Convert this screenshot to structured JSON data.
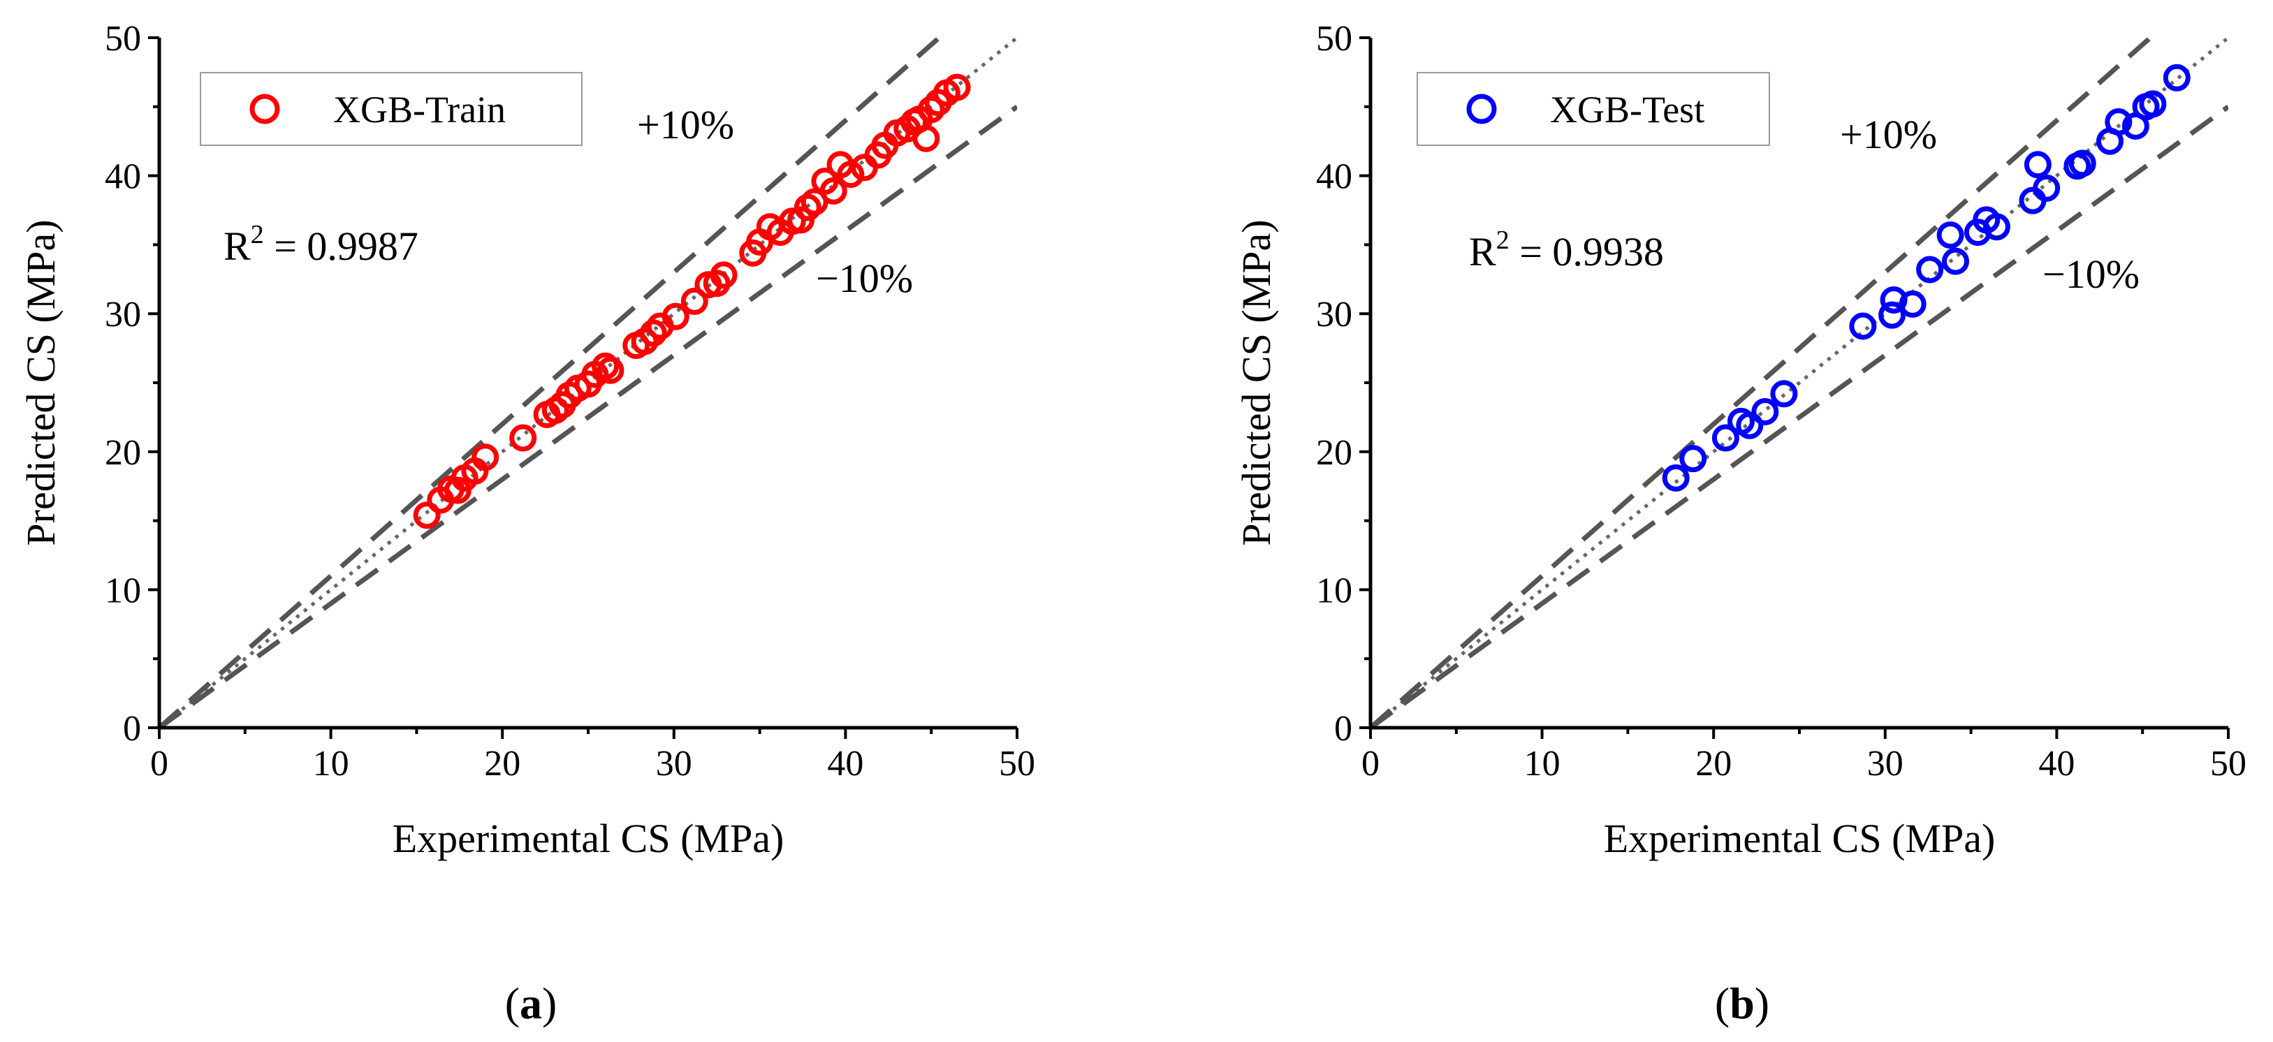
{
  "chart_data": [
    {
      "type": "scatter",
      "panel_label": "a",
      "title": "",
      "xlabel": "Experimental CS (MPa)",
      "ylabel": "Predicted CS (MPa)",
      "xlim": [
        0,
        50
      ],
      "ylim": [
        0,
        50
      ],
      "xticks": [
        0,
        10,
        20,
        30,
        40,
        50
      ],
      "yticks": [
        0,
        10,
        20,
        30,
        40,
        50
      ],
      "grid": false,
      "legend_position": "top-left",
      "series": [
        {
          "name": "XGB-Train",
          "color": "#ff0000",
          "marker": "open-circle",
          "x": [
            15.6,
            16.4,
            17.0,
            17.4,
            17.8,
            18.4,
            19.0,
            21.2,
            22.6,
            23.1,
            23.5,
            23.9,
            24.4,
            25.0,
            25.4,
            26.0,
            26.3,
            27.8,
            28.3,
            28.8,
            29.2,
            30.1,
            31.2,
            32.0,
            32.5,
            32.9,
            34.6,
            35.0,
            35.6,
            36.2,
            36.9,
            37.4,
            37.8,
            38.2,
            38.8,
            39.3,
            39.7,
            40.3,
            41.1,
            41.9,
            42.3,
            43.0,
            43.6,
            44.0,
            44.3,
            44.7,
            45.0,
            45.4,
            45.9,
            46.5
          ],
          "y": [
            15.4,
            16.5,
            17.3,
            17.2,
            18.1,
            18.6,
            19.6,
            21.0,
            22.7,
            23.0,
            23.4,
            24.1,
            24.6,
            24.9,
            25.6,
            26.2,
            25.9,
            27.7,
            28.0,
            28.6,
            29.1,
            29.8,
            30.9,
            32.1,
            32.2,
            32.8,
            34.4,
            35.2,
            36.3,
            35.9,
            36.7,
            36.8,
            37.7,
            38.1,
            39.6,
            38.9,
            40.8,
            40.1,
            40.6,
            41.5,
            42.2,
            43.1,
            43.4,
            43.9,
            44.1,
            42.7,
            44.8,
            45.3,
            46.0,
            46.4
          ]
        }
      ],
      "reference_lines": [
        {
          "name": "y = x",
          "style": "dotted",
          "slope": 1.0
        },
        {
          "name": "+10%",
          "style": "dashed",
          "slope": 1.1
        },
        {
          "name": "-10%",
          "style": "dashed",
          "slope": 0.9
        }
      ],
      "annotations": {
        "r2_prefix": "R",
        "r2_superscript": "2",
        "r2_value": " = 0.9987",
        "upper_band": "+10%",
        "lower_band": "−10%"
      }
    },
    {
      "type": "scatter",
      "panel_label": "b",
      "title": "",
      "xlabel": "Experimental CS (MPa)",
      "ylabel": "Predicted CS (MPa)",
      "xlim": [
        0,
        50
      ],
      "ylim": [
        0,
        50
      ],
      "xticks": [
        0,
        10,
        20,
        30,
        40,
        50
      ],
      "yticks": [
        0,
        10,
        20,
        30,
        40,
        50
      ],
      "grid": false,
      "legend_position": "top-left",
      "series": [
        {
          "name": "XGB-Test",
          "color": "#0000ff",
          "marker": "open-circle",
          "x": [
            17.8,
            18.8,
            20.7,
            21.6,
            22.1,
            23.0,
            24.1,
            28.7,
            30.4,
            30.5,
            31.6,
            32.6,
            33.8,
            34.1,
            35.4,
            35.9,
            36.5,
            38.6,
            38.9,
            39.4,
            41.2,
            41.5,
            43.1,
            43.6,
            44.6,
            45.2,
            45.6,
            47.0
          ],
          "y": [
            18.1,
            19.5,
            21.0,
            22.2,
            21.9,
            22.9,
            24.2,
            29.1,
            29.9,
            31.0,
            30.7,
            33.2,
            35.7,
            33.8,
            35.9,
            36.8,
            36.3,
            38.2,
            40.8,
            39.1,
            40.7,
            40.9,
            42.5,
            43.9,
            43.6,
            45.0,
            45.2,
            47.1
          ]
        }
      ],
      "reference_lines": [
        {
          "name": "y = x",
          "style": "dotted",
          "slope": 1.0
        },
        {
          "name": "+10%",
          "style": "dashed",
          "slope": 1.1
        },
        {
          "name": "-10%",
          "style": "dashed",
          "slope": 0.9
        }
      ],
      "annotations": {
        "r2_prefix": "R",
        "r2_superscript": "2",
        "r2_value": " = 0.9938",
        "upper_band": "+10%",
        "lower_band": "−10%"
      }
    }
  ]
}
